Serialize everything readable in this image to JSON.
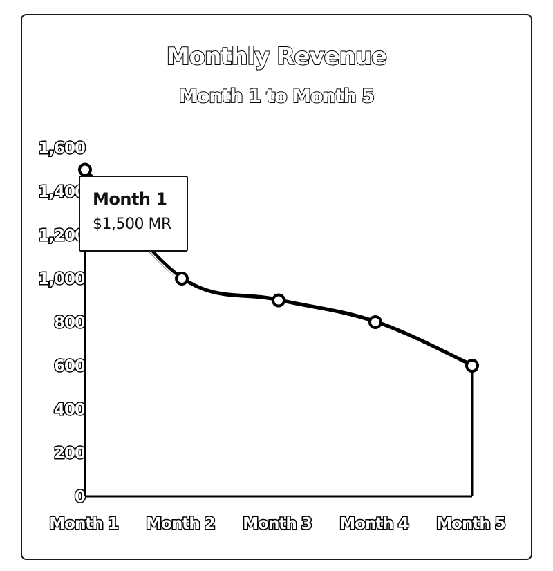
{
  "chart_data": {
    "type": "line",
    "title": "Monthly Revenue",
    "subtitle": "Month 1 to Month 5",
    "xlabel": "",
    "ylabel": "",
    "categories": [
      "Month 1",
      "Month 2",
      "Month 3",
      "Month 4",
      "Month 5"
    ],
    "series": [
      {
        "values": [
          1500,
          1000,
          900,
          800,
          600
        ]
      }
    ],
    "ylim": [
      0,
      1600
    ],
    "yticks": [
      0,
      200,
      400,
      600,
      800,
      1000,
      1200,
      1400,
      1600
    ],
    "ytick_labels": [
      "0",
      "200",
      "400",
      "600",
      "800",
      "1,000",
      "1,200",
      "1,400",
      "1,600"
    ],
    "grid": false,
    "line_color": "#000000",
    "marker_fill": "#ffffff"
  },
  "tooltip": {
    "title": "Month 1",
    "value": "$1,500 MR"
  }
}
